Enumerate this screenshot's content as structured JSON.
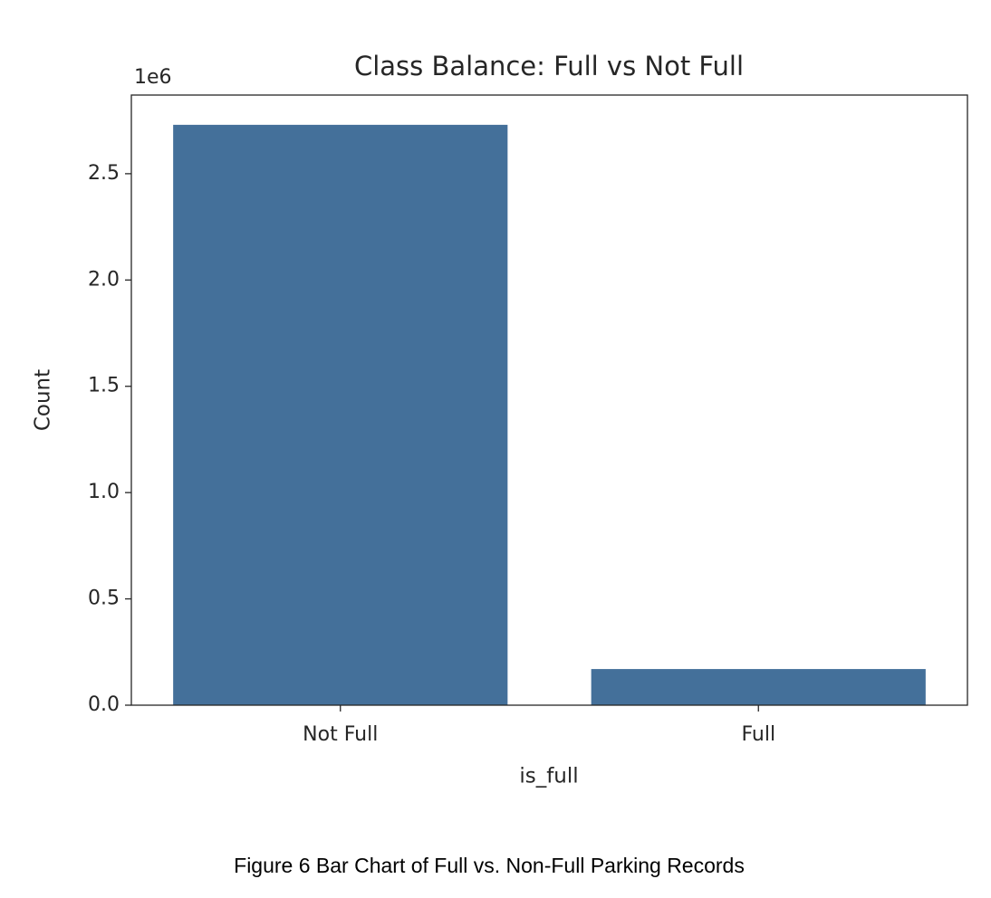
{
  "chart_data": {
    "type": "bar",
    "title": "Class Balance: Full vs Not Full",
    "x_label": "is_full",
    "y_label": "Count",
    "y_offset_label": "1e6",
    "categories": [
      "Not Full",
      "Full"
    ],
    "values": [
      2.73,
      0.17
    ],
    "color": "#44709a",
    "ylim": [
      0,
      2.87
    ],
    "yticks": [
      {
        "value": 0,
        "label": "0.0"
      },
      0.5,
      {
        "value": 1,
        "label": "1.0"
      },
      1.5,
      {
        "value": 2,
        "label": "2.0"
      },
      2.5
    ],
    "grid": false
  },
  "caption": "Figure 6 Bar Chart of Full vs. Non-Full Parking Records"
}
